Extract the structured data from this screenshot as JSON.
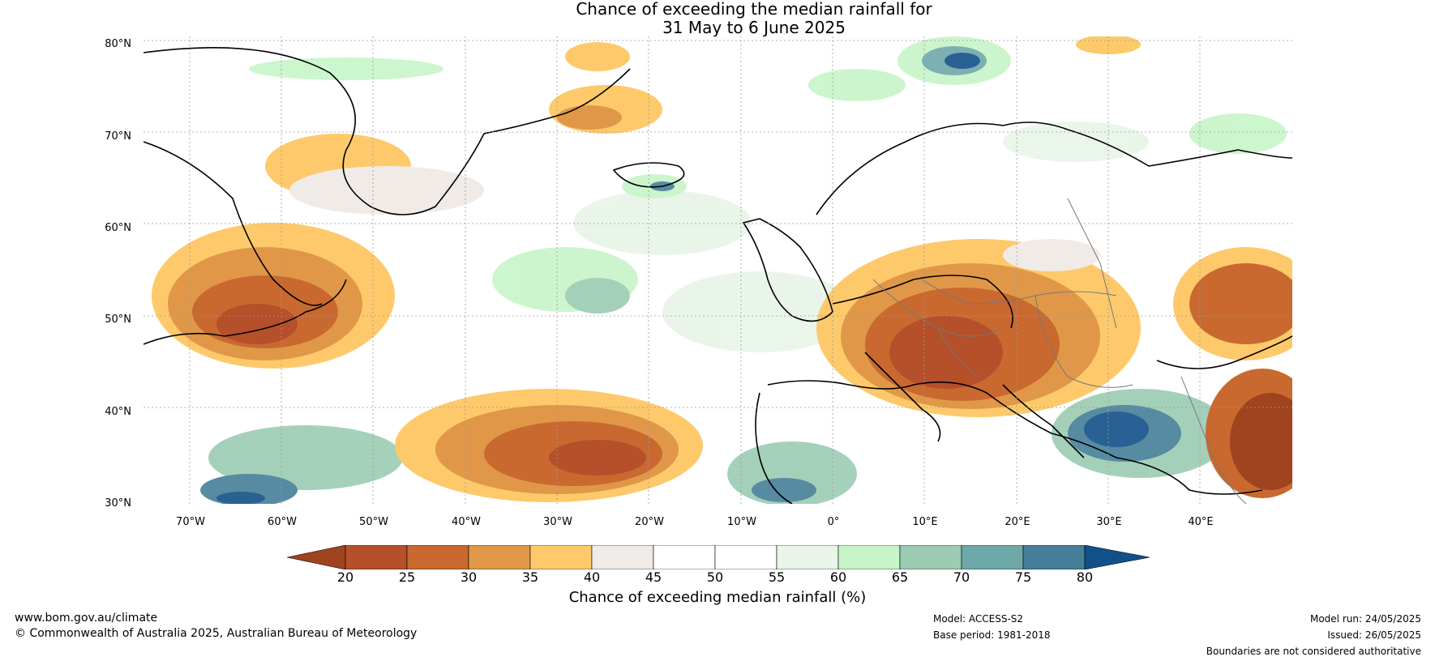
{
  "title": {
    "line1": "Chance of exceeding the median rainfall for",
    "line2": "31 May to 6 June 2025"
  },
  "map": {
    "lat_labels": [
      "80°N",
      "70°N",
      "60°N",
      "50°N",
      "40°N",
      "30°N"
    ],
    "lon_labels": [
      "70°W",
      "60°W",
      "50°W",
      "40°W",
      "30°W",
      "20°W",
      "10°W",
      "0°",
      "10°E",
      "20°E",
      "30°E",
      "40°E"
    ]
  },
  "colorbar": {
    "ticks": [
      "20",
      "25",
      "30",
      "35",
      "40",
      "45",
      "50",
      "55",
      "60",
      "65",
      "70",
      "75",
      "80"
    ],
    "colors": [
      "#a0431f",
      "#b5502a",
      "#c9692f",
      "#e09848",
      "#fec96b",
      "#f0ebe7",
      "#ffffff",
      "#ffffff",
      "#e8f5e8",
      "#c7f5c8",
      "#9bccb2",
      "#6fa8a8",
      "#457f99",
      "#12508a"
    ],
    "label": "Chance of exceeding median rainfall (%)"
  },
  "footer": {
    "website": "www.bom.gov.au/climate",
    "copyright": "© Commonwealth of Australia 2025, Australian Bureau of Meteorology",
    "model": "Model: ACCESS-S2",
    "base_period": "Base period: 1981-2018",
    "model_run": "Model run: 24/05/2025",
    "issued": "Issued: 26/05/2025",
    "disclaimer": "Boundaries are not considered authoritative"
  }
}
